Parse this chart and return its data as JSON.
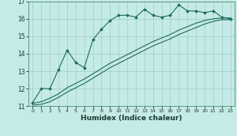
{
  "xlabel": "Humidex (Indice chaleur)",
  "ylabel": "",
  "bg_color": "#c5ebe7",
  "grid_color": "#a0ccca",
  "line_color": "#1e6b5a",
  "xlim": [
    -0.5,
    23.5
  ],
  "ylim": [
    11,
    17
  ],
  "yticks": [
    11,
    12,
    13,
    14,
    15,
    16,
    17
  ],
  "xticks": [
    0,
    1,
    2,
    3,
    4,
    5,
    6,
    7,
    8,
    9,
    10,
    11,
    12,
    13,
    14,
    15,
    16,
    17,
    18,
    19,
    20,
    21,
    22,
    23
  ],
  "line1_x": [
    0,
    1,
    2,
    3,
    4,
    5,
    6,
    7,
    8,
    9,
    10,
    11,
    12,
    13,
    14,
    15,
    16,
    17,
    18,
    19,
    20,
    21,
    22,
    23
  ],
  "line1_y": [
    11.2,
    12.0,
    12.0,
    13.1,
    14.2,
    13.5,
    13.2,
    14.8,
    15.4,
    15.9,
    16.2,
    16.2,
    16.1,
    16.55,
    16.2,
    16.1,
    16.2,
    16.8,
    16.45,
    16.45,
    16.35,
    16.45,
    16.1,
    16.0
  ],
  "line2_x": [
    0,
    1,
    2,
    3,
    4,
    5,
    6,
    7,
    8,
    9,
    10,
    11,
    12,
    13,
    14,
    15,
    16,
    17,
    18,
    19,
    20,
    21,
    22,
    23
  ],
  "line2_y": [
    11.15,
    11.25,
    11.45,
    11.7,
    12.05,
    12.3,
    12.55,
    12.85,
    13.15,
    13.45,
    13.7,
    13.95,
    14.2,
    14.45,
    14.7,
    14.9,
    15.1,
    15.35,
    15.55,
    15.75,
    15.9,
    16.0,
    16.05,
    16.05
  ],
  "line3_x": [
    0,
    1,
    2,
    3,
    4,
    5,
    6,
    7,
    8,
    9,
    10,
    11,
    12,
    13,
    14,
    15,
    16,
    17,
    18,
    19,
    20,
    21,
    22,
    23
  ],
  "line3_y": [
    11.05,
    11.1,
    11.25,
    11.5,
    11.8,
    12.05,
    12.3,
    12.6,
    12.9,
    13.2,
    13.45,
    13.7,
    13.95,
    14.2,
    14.45,
    14.65,
    14.85,
    15.1,
    15.3,
    15.5,
    15.7,
    15.85,
    15.95,
    15.95
  ]
}
